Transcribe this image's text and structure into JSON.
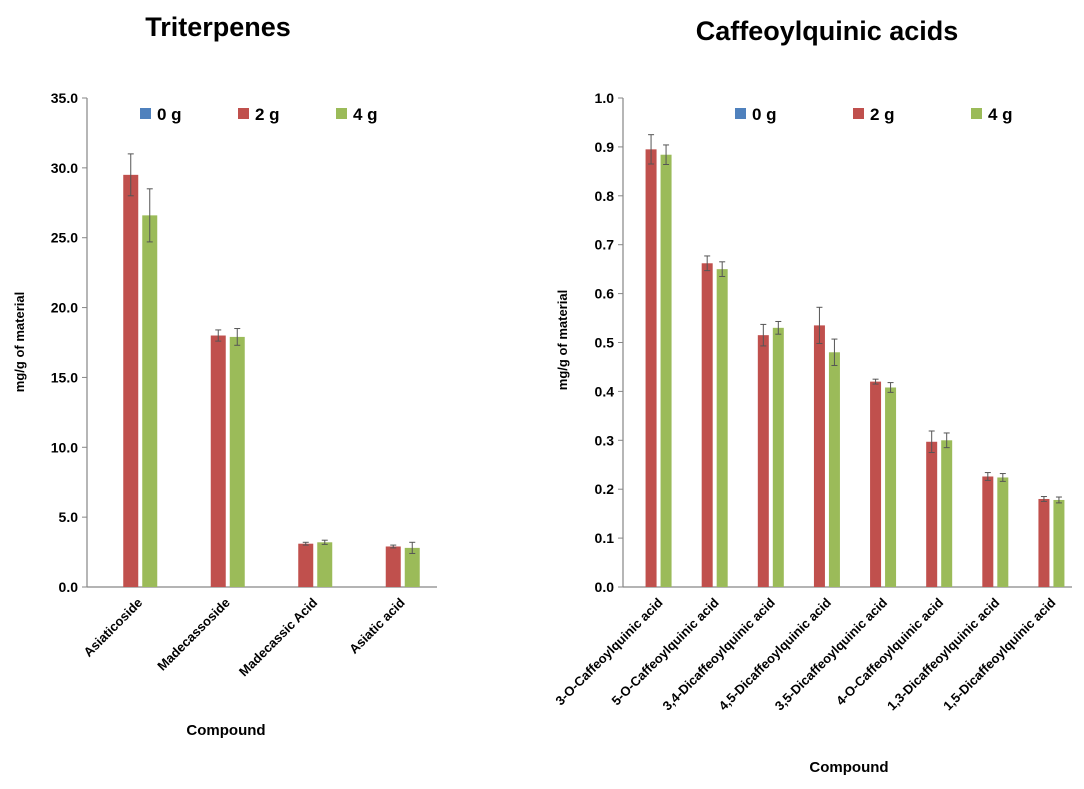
{
  "colors": {
    "0 g": "#4F81BD",
    "2 g": "#C0504D",
    "4 g": "#9BBB59",
    "axis": "#868686",
    "error": "#555555"
  },
  "chart_data": [
    {
      "type": "bar",
      "title": "Triterpenes",
      "xlabel": "Compound",
      "ylabel": "mg/g of material",
      "ylim": [
        0,
        35
      ],
      "yticks": [
        "0.0",
        "5.0",
        "10.0",
        "15.0",
        "20.0",
        "25.0",
        "30.0",
        "35.0"
      ],
      "legend_position": "top",
      "categories": [
        "Asiaticoside",
        "Madecassoside",
        "Madecassic Acid",
        "Asiatic acid"
      ],
      "series": [
        {
          "name": "0 g",
          "values": [
            0,
            0,
            0,
            0
          ],
          "errors": [
            0,
            0,
            0,
            0
          ]
        },
        {
          "name": "2 g",
          "values": [
            29.5,
            18.0,
            3.1,
            2.9
          ],
          "errors": [
            1.5,
            0.4,
            0.1,
            0.1
          ]
        },
        {
          "name": "4 g",
          "values": [
            26.6,
            17.9,
            3.2,
            2.8
          ],
          "errors": [
            1.9,
            0.6,
            0.15,
            0.4
          ]
        }
      ]
    },
    {
      "type": "bar",
      "title": "Caffeoylquinic acids",
      "xlabel": "Compound",
      "ylabel": "mg/g of material",
      "ylim": [
        0,
        1.0
      ],
      "yticks": [
        "0.0",
        "0.1",
        "0.2",
        "0.3",
        "0.4",
        "0.5",
        "0.6",
        "0.7",
        "0.8",
        "0.9",
        "1.0"
      ],
      "legend_position": "top",
      "categories": [
        "3-O-Caffeoylquinic acid",
        "5-O-Caffeoylquinic acid",
        "3,4-Dicaffeoylquinic acid",
        "4,5-Dicaffeoylquinic acid",
        "3,5-Dicaffeoylquinic acid",
        "4-O-Caffeoylquinic acid",
        "1,3-Dicaffeoylquinic acid",
        "1,5-Dicaffeoylquinic acid"
      ],
      "series": [
        {
          "name": "0 g",
          "values": [
            0,
            0,
            0,
            0,
            0,
            0,
            0,
            0
          ],
          "errors": [
            0,
            0,
            0,
            0,
            0,
            0,
            0,
            0
          ]
        },
        {
          "name": "2 g",
          "values": [
            0.895,
            0.662,
            0.515,
            0.535,
            0.42,
            0.297,
            0.226,
            0.18
          ],
          "errors": [
            0.03,
            0.015,
            0.022,
            0.037,
            0.005,
            0.022,
            0.008,
            0.005
          ]
        },
        {
          "name": "4 g",
          "values": [
            0.884,
            0.65,
            0.53,
            0.48,
            0.408,
            0.3,
            0.224,
            0.178
          ],
          "errors": [
            0.02,
            0.015,
            0.013,
            0.027,
            0.01,
            0.015,
            0.008,
            0.006
          ]
        }
      ]
    }
  ]
}
